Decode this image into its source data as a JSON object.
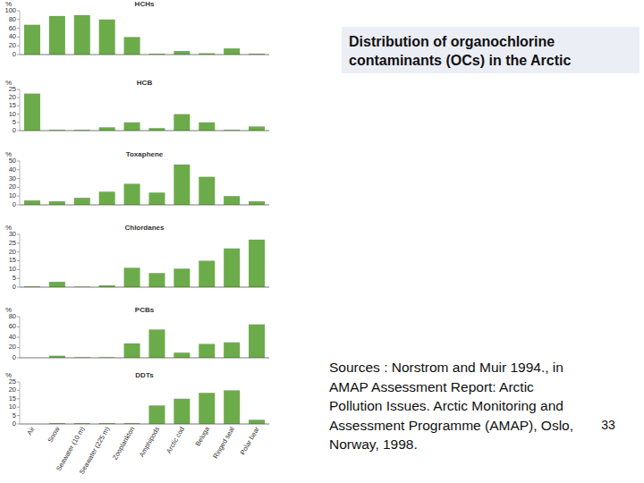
{
  "chart_data": [
    {
      "type": "bar",
      "title": "HCHs",
      "y_label": "%",
      "categories": [
        null,
        null,
        null,
        null,
        null,
        null,
        null,
        null,
        null,
        null
      ],
      "values": [
        68,
        88,
        90,
        80,
        40,
        2,
        8,
        3,
        14,
        2
      ],
      "color": "#6cab4a",
      "ylim": [
        0,
        100
      ],
      "yticks": [
        0,
        20,
        40,
        60,
        80,
        100
      ],
      "grid": false,
      "tick_labels": "y"
    },
    {
      "type": "bar",
      "title": "HCB",
      "y_label": "%",
      "categories": [
        null,
        null,
        null,
        null,
        null,
        null,
        null,
        null,
        null,
        null
      ],
      "values": [
        22.5,
        0.5,
        0.5,
        2,
        5,
        1.5,
        10,
        5,
        0.5,
        2.5
      ],
      "color": "#6cab4a",
      "ylim": [
        0,
        25
      ],
      "yticks": [
        0,
        5,
        10,
        15,
        20,
        25
      ],
      "grid": false,
      "tick_labels": "y"
    },
    {
      "type": "bar",
      "title": "Toxaphene",
      "y_label": "%",
      "categories": [
        null,
        null,
        null,
        null,
        null,
        null,
        null,
        null,
        null,
        null
      ],
      "values": [
        5,
        4,
        8,
        15,
        24,
        14,
        46,
        32,
        10,
        4
      ],
      "color": "#6cab4a",
      "ylim": [
        0,
        50
      ],
      "yticks": [
        0,
        10,
        20,
        30,
        40,
        50
      ],
      "grid": false,
      "tick_labels": "y"
    },
    {
      "type": "bar",
      "title": "Chlordanes",
      "y_label": "%",
      "categories": [
        null,
        null,
        null,
        null,
        null,
        null,
        null,
        null,
        null,
        null
      ],
      "values": [
        0.5,
        3,
        0.3,
        1,
        11,
        8,
        10.5,
        15,
        22,
        27
      ],
      "color": "#6cab4a",
      "ylim": [
        0,
        30
      ],
      "yticks": [
        0,
        5,
        10,
        15,
        20,
        25,
        30
      ],
      "grid": false,
      "tick_labels": "y"
    },
    {
      "type": "bar",
      "title": "PCBs",
      "y_label": "%",
      "categories": [
        null,
        null,
        null,
        null,
        null,
        null,
        null,
        null,
        null,
        null
      ],
      "values": [
        0,
        4,
        1,
        1,
        28,
        55,
        10,
        27,
        30,
        65
      ],
      "color": "#6cab4a",
      "ylim": [
        0,
        80
      ],
      "yticks": [
        0,
        20,
        40,
        60,
        80
      ],
      "grid": false,
      "tick_labels": "y"
    },
    {
      "type": "bar",
      "title": "DDTs",
      "y_label": "%",
      "categories": [
        "Air",
        "Snow",
        "Seawater (10 m)",
        "Seawater (225 m)",
        "Zooplankton",
        "Amphipods",
        "Arctic cod",
        "Beluga",
        "Ringed seal",
        "Polar bear"
      ],
      "values": [
        0,
        0.5,
        0.5,
        0.5,
        0.5,
        11,
        15,
        18.5,
        20,
        2.5
      ],
      "color": "#6cab4a",
      "ylim": [
        0,
        25
      ],
      "yticks": [
        0,
        5,
        10,
        15,
        20,
        25
      ],
      "grid": false
    }
  ],
  "slide": {
    "title": [
      "Distribution of organochlorine",
      "contaminants (OCs) in the Arctic"
    ],
    "source": [
      "Sources : Norstrom and Muir 1994., in",
      "AMAP Assessment Report: Arctic",
      "Pollution Issues. Arctic Monitoring and",
      "Assessment Programme (AMAP), Oslo,",
      "Norway, 1998."
    ],
    "page_number": 33
  }
}
